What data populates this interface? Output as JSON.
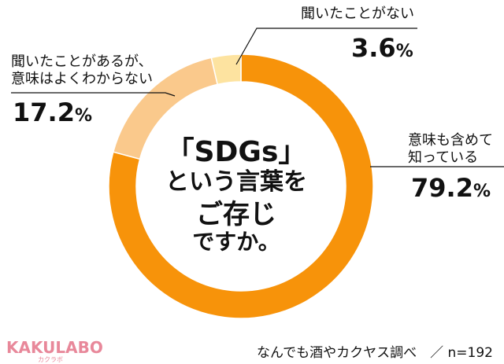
{
  "chart_data": {
    "type": "pie",
    "donut": true,
    "center_title": [
      "「SDGs」",
      "という言葉を",
      "ご存じ",
      "ですか。"
    ],
    "slices": [
      {
        "label_lines": [
          "意味も含めて",
          "知っている"
        ],
        "value": 79.2,
        "color": "#f7930a"
      },
      {
        "label_lines": [
          "聞いたことがあるが、",
          "意味はよくわからない"
        ],
        "value": 17.2,
        "color": "#fac98c"
      },
      {
        "label_lines": [
          "聞いたことがない"
        ],
        "value": 3.6,
        "color": "#fde3a0"
      }
    ],
    "value_unit": "%"
  },
  "footer": {
    "logo": "KAKULABO",
    "logo_sub": "カクラボ",
    "source": "なんでも酒やカクヤス調べ　／ n=192"
  }
}
